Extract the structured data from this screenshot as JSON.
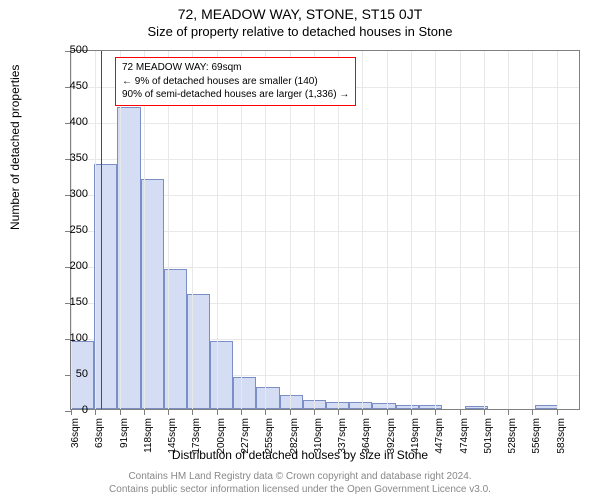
{
  "title_main": "72, MEADOW WAY, STONE, ST15 0JT",
  "title_sub": "Size of property relative to detached houses in Stone",
  "y_axis_label": "Number of detached properties",
  "x_axis_label": "Distribution of detached houses by size in Stone",
  "footer_line1": "Contains HM Land Registry data © Crown copyright and database right 2024.",
  "footer_line2": "Contains public sector information licensed under the Open Government Licence v3.0.",
  "chart": {
    "type": "histogram",
    "ylim": [
      0,
      500
    ],
    "ytick_step": 50,
    "x_ticks": [
      "36sqm",
      "63sqm",
      "91sqm",
      "118sqm",
      "145sqm",
      "173sqm",
      "200sqm",
      "227sqm",
      "255sqm",
      "282sqm",
      "310sqm",
      "337sqm",
      "364sqm",
      "392sqm",
      "419sqm",
      "447sqm",
      "474sqm",
      "501sqm",
      "528sqm",
      "556sqm",
      "583sqm"
    ],
    "bars": [
      95,
      340,
      420,
      320,
      195,
      160,
      95,
      45,
      30,
      20,
      12,
      10,
      10,
      8,
      6,
      5,
      0,
      4,
      0,
      0,
      5,
      0
    ],
    "bar_color": "#d4ddf4",
    "bar_border_color": "#7b8fc7",
    "background_color": "#ffffff",
    "grid_color": "#e8e8e8",
    "axis_color": "#808080",
    "ref_line_x": 69,
    "ref_line_color": "#ff0000",
    "x_min": 36,
    "x_max": 595,
    "annotation": {
      "lines": [
        "72 MEADOW WAY: 69sqm",
        "← 9% of detached houses are smaller (140)",
        "90% of semi-detached houses are larger (1,336) →"
      ],
      "border_color": "#ff0000",
      "bg_color": "#ffffff",
      "font_size": 10
    }
  }
}
